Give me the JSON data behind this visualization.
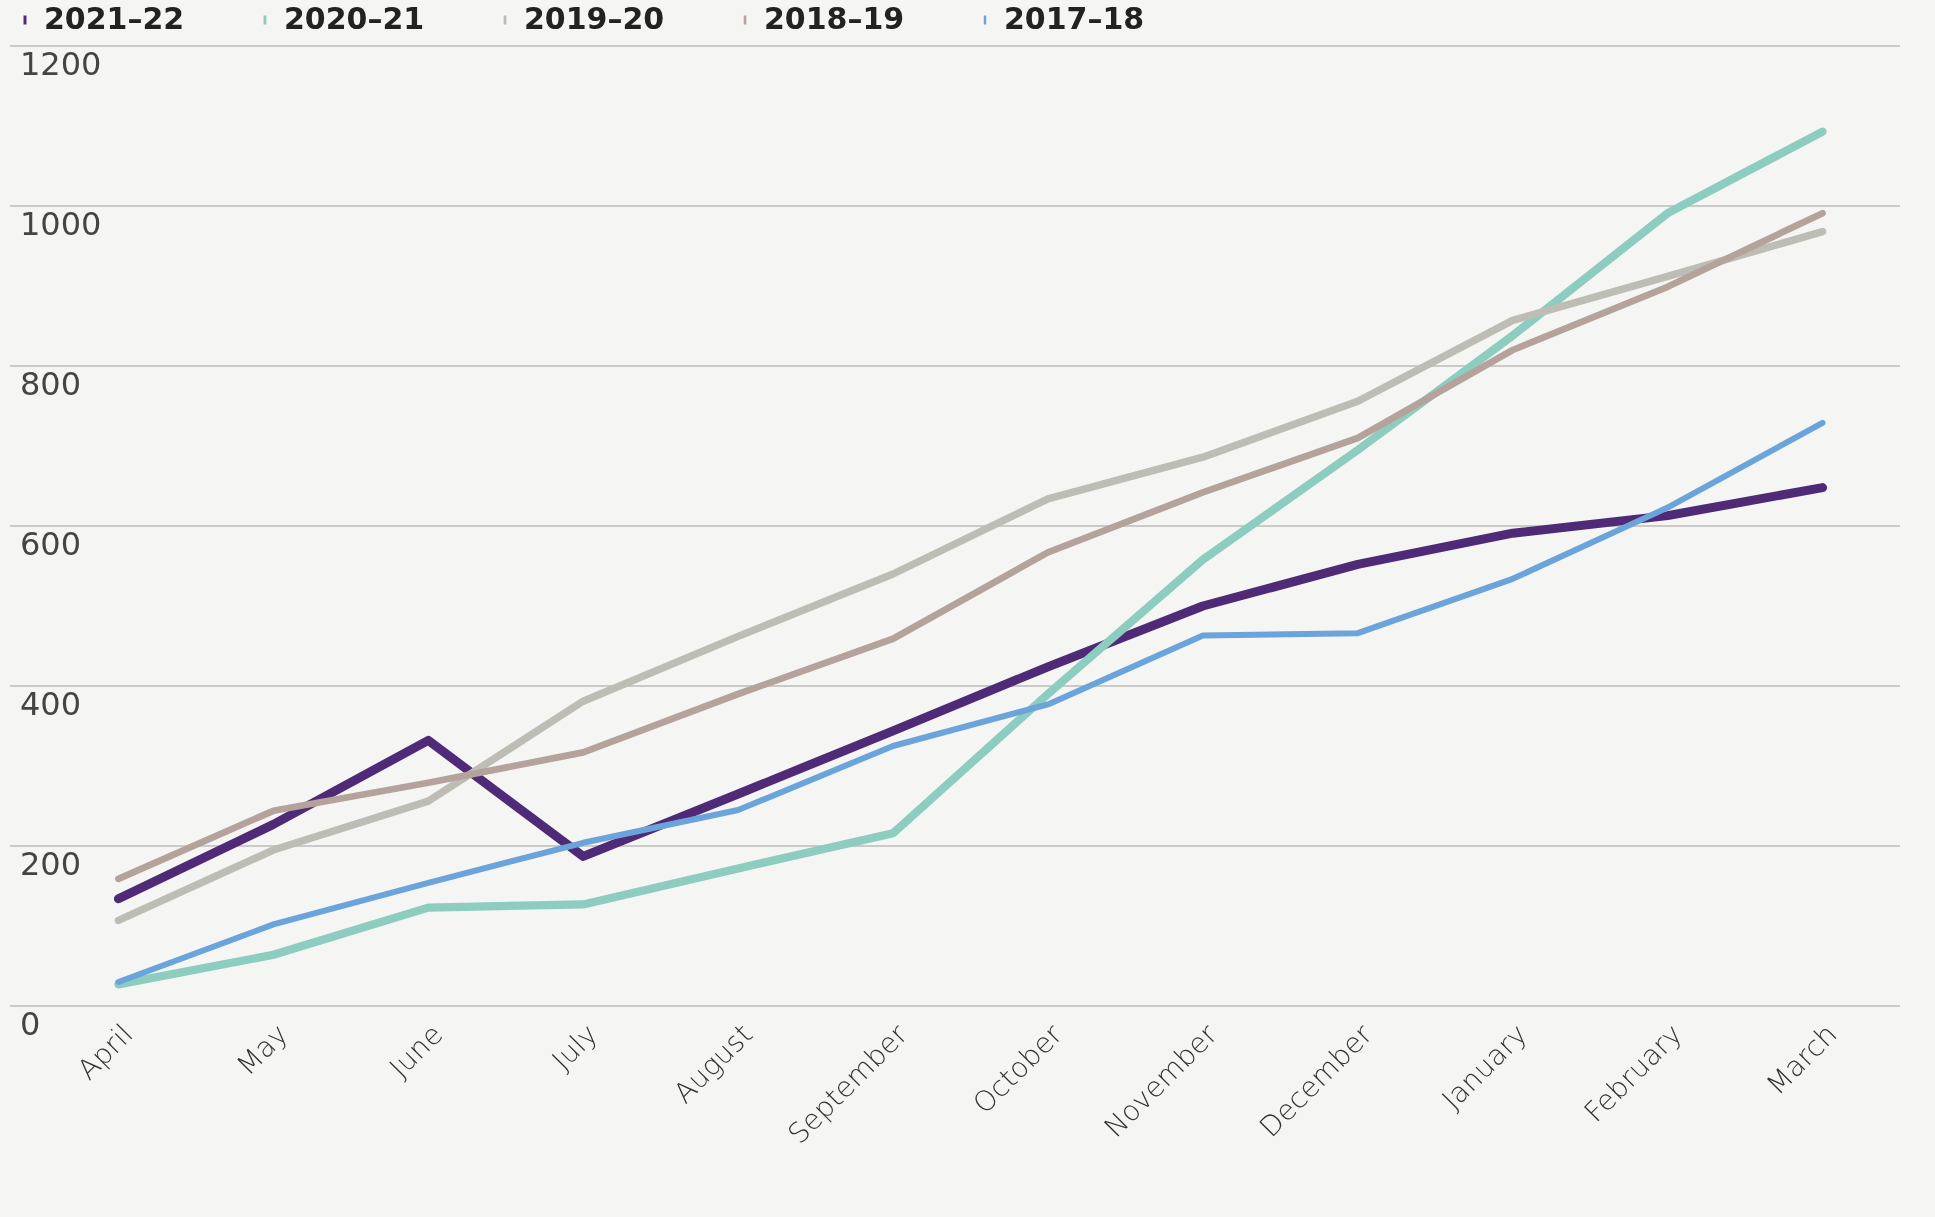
{
  "chart_data": {
    "type": "line",
    "categories": [
      "April",
      "May",
      "June",
      "July",
      "August",
      "September",
      "October",
      "November",
      "December",
      "January",
      "February",
      "March"
    ],
    "series": [
      {
        "name": "2021–22",
        "color": "#4e2a77",
        "values": [
          134,
          227,
          332,
          187,
          265,
          344,
          424,
          500,
          552,
          591,
          613,
          648
        ]
      },
      {
        "name": "2020–21",
        "color": "#8ccdc0",
        "values": [
          27,
          64,
          123,
          127,
          172,
          216,
          390,
          558,
          695,
          838,
          991,
          1093
        ]
      },
      {
        "name": "2019–20",
        "color": "#bdbdb5",
        "values": [
          107,
          195,
          256,
          381,
          462,
          540,
          634,
          686,
          756,
          857,
          912,
          968
        ]
      },
      {
        "name": "2018–19",
        "color": "#b5a39b",
        "values": [
          159,
          244,
          279,
          317,
          390,
          459,
          567,
          642,
          710,
          820,
          899,
          991
        ]
      },
      {
        "name": "2017–18",
        "color": "#6aa4da",
        "values": [
          30,
          102,
          154,
          204,
          245,
          325,
          377,
          463,
          466,
          534,
          623,
          729
        ]
      }
    ],
    "ylim": [
      0,
      1200
    ],
    "yticks": [
      0,
      200,
      400,
      600,
      800,
      1000,
      1200
    ],
    "grid": "y",
    "legend": "top left",
    "marker": "none",
    "line_style": "solid"
  }
}
